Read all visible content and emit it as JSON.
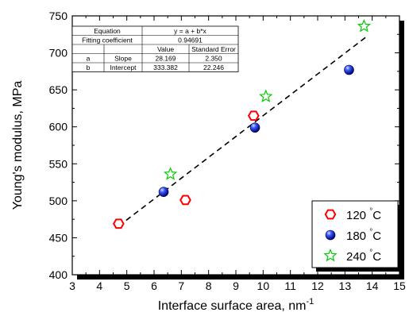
{
  "chart_data": {
    "type": "scatter",
    "xlabel": "Interface surface area, nm",
    "xlabel_superscript": "-1",
    "ylabel": "Young's modulus, MPa",
    "xlim": [
      3,
      15
    ],
    "ylim": [
      400,
      750
    ],
    "x_ticks": [
      3,
      4,
      5,
      6,
      7,
      8,
      9,
      10,
      11,
      12,
      13,
      14,
      15
    ],
    "y_ticks": [
      400,
      450,
      500,
      550,
      600,
      650,
      700,
      750
    ],
    "grid": false,
    "legend_position": "bottom-right",
    "series": [
      {
        "name": "120 °C",
        "marker": "hexagon-open",
        "color": "#ff0000",
        "points": [
          [
            4.7,
            469
          ],
          [
            7.15,
            501
          ],
          [
            9.65,
            615
          ]
        ]
      },
      {
        "name": "180 °C",
        "marker": "sphere-filled",
        "color": "#0000ff",
        "points": [
          [
            6.35,
            512
          ],
          [
            9.7,
            599
          ],
          [
            13.15,
            677
          ]
        ]
      },
      {
        "name": "240 °C",
        "marker": "star-open",
        "color": "#00cc00",
        "points": [
          [
            6.6,
            536
          ],
          [
            10.1,
            641
          ],
          [
            13.7,
            736
          ]
        ]
      }
    ],
    "fit_line": {
      "style": "dashed",
      "color": "#000000",
      "intercept": 333.382,
      "slope": 28.169,
      "x_range": [
        4.7,
        13.75
      ]
    },
    "fit_table": {
      "rows": [
        [
          "Equation",
          "",
          "y = a + b*x",
          ""
        ],
        [
          "Fitting coefficient",
          "",
          "0.94691",
          ""
        ],
        [
          "",
          "",
          "Value",
          "Standard Error"
        ],
        [
          "a",
          "Slope",
          "28.169",
          "2.350"
        ],
        [
          "b",
          "Intercept",
          "333.382",
          "22.246"
        ]
      ]
    }
  }
}
